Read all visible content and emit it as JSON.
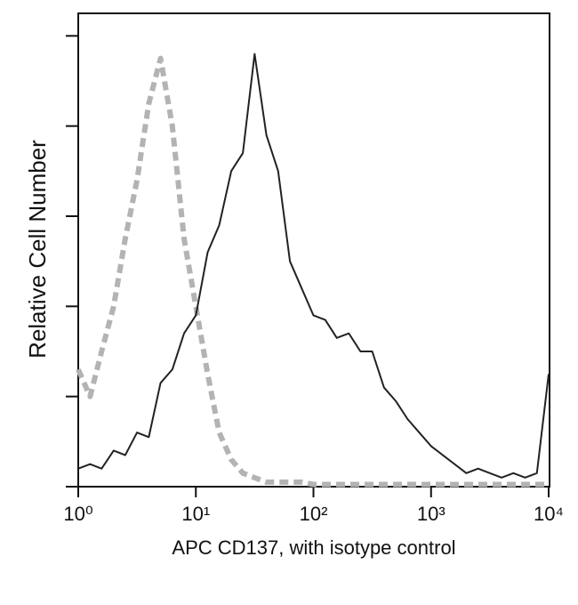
{
  "chart_data": {
    "type": "line",
    "x_label": "APC CD137, with isotype control",
    "y_label": "Relative Cell Number",
    "xscale": "log",
    "xlim": [
      1,
      10000
    ],
    "xticks": [
      {
        "value": 1,
        "label": "10⁰"
      },
      {
        "value": 10,
        "label": "10¹"
      },
      {
        "value": 100,
        "label": "10²"
      },
      {
        "value": 1000,
        "label": "10³"
      },
      {
        "value": 10000,
        "label": "10⁴"
      }
    ],
    "ylim": [
      0,
      105
    ],
    "yticks": [
      0,
      20,
      40,
      60,
      80,
      100
    ],
    "ytick_labels": false,
    "x": [
      1,
      1.26,
      1.58,
      2,
      2.51,
      3.16,
      3.98,
      5.01,
      6.31,
      7.94,
      10,
      12.6,
      15.8,
      20,
      25.1,
      31.6,
      39.8,
      50.1,
      63.1,
      79.4,
      100,
      126,
      158,
      200,
      251,
      316,
      398,
      501,
      631,
      794,
      1000,
      1259,
      1585,
      1995,
      2512,
      3162,
      3981,
      5012,
      6310,
      7943,
      10000
    ],
    "series": [
      {
        "color": "#b3b3b3",
        "dashed": true,
        "values": [
          26,
          20,
          30,
          40,
          55,
          68,
          85,
          95,
          80,
          55,
          40,
          25,
          12,
          6,
          3,
          2,
          1,
          1,
          1,
          1,
          0.5,
          0.5,
          0.5,
          0.5,
          0.5,
          0.5,
          0.5,
          0.5,
          0.5,
          0.5,
          0.5,
          0.5,
          0.5,
          0.5,
          0.5,
          0.5,
          0.5,
          0.5,
          0.5,
          0.5,
          0.5
        ]
      },
      {
        "color": "#222222",
        "dashed": false,
        "values": [
          4,
          5,
          4,
          8,
          7,
          12,
          11,
          23,
          26,
          34,
          38,
          52,
          58,
          70,
          74,
          96,
          78,
          70,
          50,
          44,
          38,
          37,
          33,
          34,
          30,
          30,
          22,
          19,
          15,
          12,
          9,
          7,
          5,
          3,
          4,
          3,
          2,
          3,
          2,
          3,
          25
        ]
      }
    ]
  }
}
